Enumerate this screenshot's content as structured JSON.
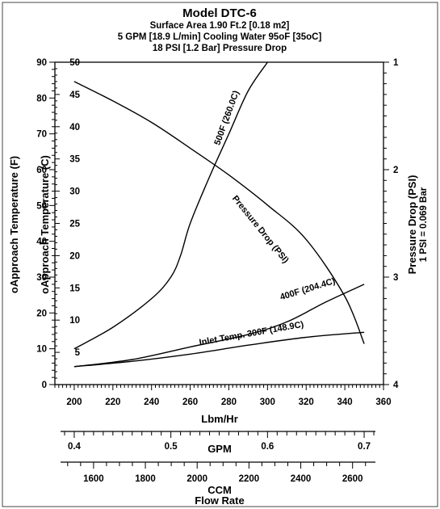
{
  "chart_data": {
    "type": "line",
    "title": "Model DTC-6",
    "subtitle": [
      "Surface Area 1.90 Ft.2 [0.18 m2]",
      "5 GPM [18.9 L/min] Cooling Water 95oF [35oC]",
      "18 PSI [1.2 Bar] Pressure Drop"
    ],
    "xlabel": "Lbm/Hr",
    "xlim": [
      190,
      360
    ],
    "x_ticks": [
      200,
      220,
      240,
      260,
      280,
      300,
      320,
      340,
      360
    ],
    "ylabel_left_f": "oApproach Temperature (F)",
    "ylim_left_f": [
      0,
      90
    ],
    "y_ticks_left_f": [
      0,
      10,
      20,
      30,
      40,
      50,
      60,
      70,
      80,
      90
    ],
    "ylabel_left_c": "oApproach Temperature (C)",
    "y_ticks_left_c": [
      5,
      10,
      15,
      20,
      25,
      30,
      35,
      40,
      45,
      50
    ],
    "ylabel_right": "Pressure Drop (PSI)",
    "ylabel_right_note": "1 PSI = 0.069 Bar",
    "ylim_right": [
      1,
      4
    ],
    "y_ticks_right": [
      1,
      2,
      3,
      4
    ],
    "gpm_axis": {
      "label": "GPM",
      "ticks": [
        "0.4",
        "0.5",
        "0.6",
        "0.7"
      ],
      "tick_lbm": [
        200,
        250,
        300,
        350
      ]
    },
    "ccm_axis": {
      "label": "CCM",
      "ticks": [
        "1600",
        "1800",
        "2000",
        "2200",
        "2400",
        "2600"
      ],
      "tick_lbm": [
        210,
        236.8,
        263.6,
        290.4,
        317.2,
        344
      ]
    },
    "bottom_label": "Flow Rate",
    "series": [
      {
        "name": "500F (260.0C)",
        "axis": "left",
        "x": [
          200,
          220,
          240,
          250,
          255,
          260,
          270,
          280,
          290,
          300
        ],
        "y": [
          10,
          16,
          24,
          30,
          36,
          45,
          58,
          70,
          82,
          92
        ]
      },
      {
        "name": "400F (204.4C)",
        "axis": "left",
        "x": [
          200,
          230,
          260,
          290,
          310,
          330,
          350
        ],
        "y": [
          5,
          7,
          10.5,
          14,
          17.5,
          23,
          28
        ]
      },
      {
        "name": "Inlet Temp. 300F (148.9C)",
        "axis": "left",
        "x": [
          200,
          230,
          260,
          290,
          320,
          350
        ],
        "y": [
          5,
          6.5,
          8.5,
          11,
          13.2,
          14.6
        ]
      },
      {
        "name": "Pressure Drop (PSI)",
        "axis": "right",
        "x": [
          200,
          220,
          240,
          260,
          280,
          300,
          320,
          340,
          350
        ],
        "y": [
          1.18,
          1.36,
          1.56,
          1.8,
          2.05,
          2.33,
          2.65,
          3.18,
          3.62
        ]
      }
    ]
  }
}
